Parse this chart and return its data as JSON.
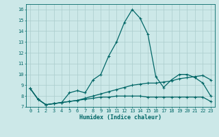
{
  "title": "",
  "xlabel": "Humidex (Indice chaleur)",
  "ylabel": "",
  "background_color": "#cce8e8",
  "grid_color": "#aacccc",
  "line_color": "#006666",
  "xlim": [
    -0.5,
    23.5
  ],
  "ylim": [
    7,
    16.5
  ],
  "yticks": [
    7,
    8,
    9,
    10,
    11,
    12,
    13,
    14,
    15,
    16
  ],
  "xticks": [
    0,
    1,
    2,
    3,
    4,
    5,
    6,
    7,
    8,
    9,
    10,
    11,
    12,
    13,
    14,
    15,
    16,
    17,
    18,
    19,
    20,
    21,
    22,
    23
  ],
  "line1": [
    8.7,
    7.7,
    7.2,
    7.3,
    7.4,
    8.3,
    8.5,
    8.3,
    9.5,
    10.0,
    11.7,
    13.0,
    14.8,
    16.0,
    15.2,
    13.7,
    9.8,
    8.8,
    9.5,
    10.0,
    10.0,
    9.7,
    9.2,
    8.0
  ],
  "line2": [
    8.7,
    7.7,
    7.2,
    7.3,
    7.4,
    7.5,
    7.6,
    7.8,
    8.0,
    8.2,
    8.4,
    8.6,
    8.8,
    9.0,
    9.1,
    9.2,
    9.2,
    9.3,
    9.4,
    9.6,
    9.7,
    9.8,
    9.9,
    9.5
  ],
  "line3": [
    8.7,
    7.7,
    7.2,
    7.3,
    7.4,
    7.5,
    7.6,
    7.7,
    7.8,
    7.9,
    7.9,
    8.0,
    8.0,
    8.0,
    8.0,
    7.9,
    7.9,
    7.9,
    7.9,
    7.9,
    7.9,
    7.9,
    7.9,
    7.5
  ],
  "xlabel_fontsize": 6,
  "tick_fontsize": 5,
  "marker_size": 3,
  "linewidth": 0.9
}
